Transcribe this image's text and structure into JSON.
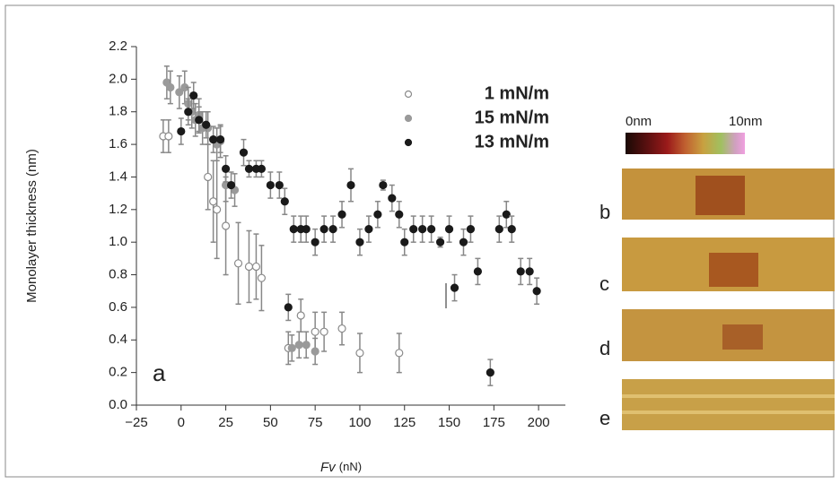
{
  "chart_data": {
    "type": "scatter",
    "y_label": "Monolayer thickness (nm)",
    "x_label": {
      "symbol": "Fv",
      "unit": "(nN)"
    },
    "panel_label": "a",
    "xlim": [
      -25,
      215
    ],
    "ylim": [
      0,
      2.2
    ],
    "xticks": [
      {
        "value": -25,
        "label": "−25"
      },
      0,
      25,
      50,
      75,
      100,
      125,
      150,
      175,
      200
    ],
    "yticks": [
      {
        "value": 0,
        "label": "0.0"
      },
      0.2,
      0.4,
      0.6,
      0.8,
      {
        "value": 1,
        "label": "1.0"
      },
      1.2,
      1.4,
      1.6,
      1.8,
      {
        "value": 2,
        "label": "2.0"
      },
      2.2
    ],
    "legend": "upper right",
    "series": [
      {
        "name": "1 mN/m",
        "marker": "open",
        "color": "#8a8a8a",
        "x": [
          -10,
          -7,
          15,
          18,
          20,
          25,
          32,
          38,
          42,
          45,
          60,
          67,
          75,
          80,
          90,
          100,
          122
        ],
        "values": [
          1.65,
          1.65,
          1.4,
          1.25,
          1.2,
          1.1,
          0.87,
          0.85,
          0.85,
          0.78,
          0.35,
          0.55,
          0.45,
          0.45,
          0.47,
          0.32,
          0.32
        ],
        "errors": [
          0.1,
          0.1,
          0.2,
          0.25,
          0.3,
          0.3,
          0.25,
          0.22,
          0.2,
          0.2,
          0.1,
          0.1,
          0.12,
          0.12,
          0.1,
          0.12,
          0.12
        ]
      },
      {
        "name": "15 mN/m",
        "marker": "filled",
        "color": "#9a9a9a",
        "x": [
          -8,
          -6,
          -1,
          2,
          4,
          6,
          8,
          10,
          12,
          15,
          20,
          22,
          25,
          30,
          62,
          66,
          70,
          75
        ],
        "values": [
          1.98,
          1.95,
          1.92,
          1.95,
          1.85,
          1.8,
          1.75,
          1.78,
          1.7,
          1.7,
          1.6,
          1.62,
          1.35,
          1.32,
          0.35,
          0.37,
          0.37,
          0.33
        ],
        "errors": [
          0.1,
          0.1,
          0.1,
          0.1,
          0.1,
          0.1,
          0.1,
          0.1,
          0.1,
          0.1,
          0.1,
          0.1,
          0.1,
          0.1,
          0.08,
          0.08,
          0.08,
          0.08
        ]
      },
      {
        "name": "13 mN/m",
        "marker": "filled",
        "color": "#1a1a1a",
        "x": [
          0,
          4,
          7,
          10,
          14,
          18,
          22,
          25,
          28,
          35,
          38,
          42,
          45,
          50,
          55,
          58,
          60,
          63,
          67,
          70,
          75,
          80,
          85,
          90,
          95,
          100,
          105,
          110,
          113,
          118,
          122,
          125,
          130,
          135,
          140,
          145,
          150,
          153,
          158,
          162,
          166,
          173,
          178,
          182,
          185,
          190,
          195,
          199
        ],
        "values": [
          1.68,
          1.8,
          1.9,
          1.75,
          1.72,
          1.63,
          1.63,
          1.45,
          1.35,
          1.55,
          1.45,
          1.45,
          1.45,
          1.35,
          1.35,
          1.25,
          0.6,
          1.08,
          1.08,
          1.08,
          1.0,
          1.08,
          1.08,
          1.17,
          1.35,
          1.0,
          1.08,
          1.17,
          1.35,
          1.27,
          1.17,
          1.0,
          1.08,
          1.08,
          1.08,
          1.0,
          1.08,
          0.72,
          1.0,
          1.08,
          0.82,
          0.2,
          1.08,
          1.17,
          1.08,
          0.82,
          0.82,
          0.7
        ],
        "errors": [
          0.08,
          0.08,
          0.08,
          0.08,
          0.08,
          0.08,
          0.08,
          0.08,
          0.08,
          0.08,
          0.05,
          0.05,
          0.05,
          0.08,
          0.08,
          0.08,
          0.08,
          0.08,
          0.08,
          0.08,
          0.08,
          0.08,
          0.08,
          0.08,
          0.1,
          0.08,
          0.08,
          0.08,
          0.03,
          0.08,
          0.08,
          0.08,
          0.08,
          0.08,
          0.08,
          0.03,
          0.08,
          0.08,
          0.08,
          0.08,
          0.08,
          0.08,
          0.08,
          0.08,
          0.08,
          0.08,
          0.08,
          0.08
        ]
      }
    ],
    "color_scale": {
      "min_label": "0nm",
      "max_label": "10nm"
    },
    "image_labels": [
      "b",
      "c",
      "d",
      "e"
    ]
  }
}
